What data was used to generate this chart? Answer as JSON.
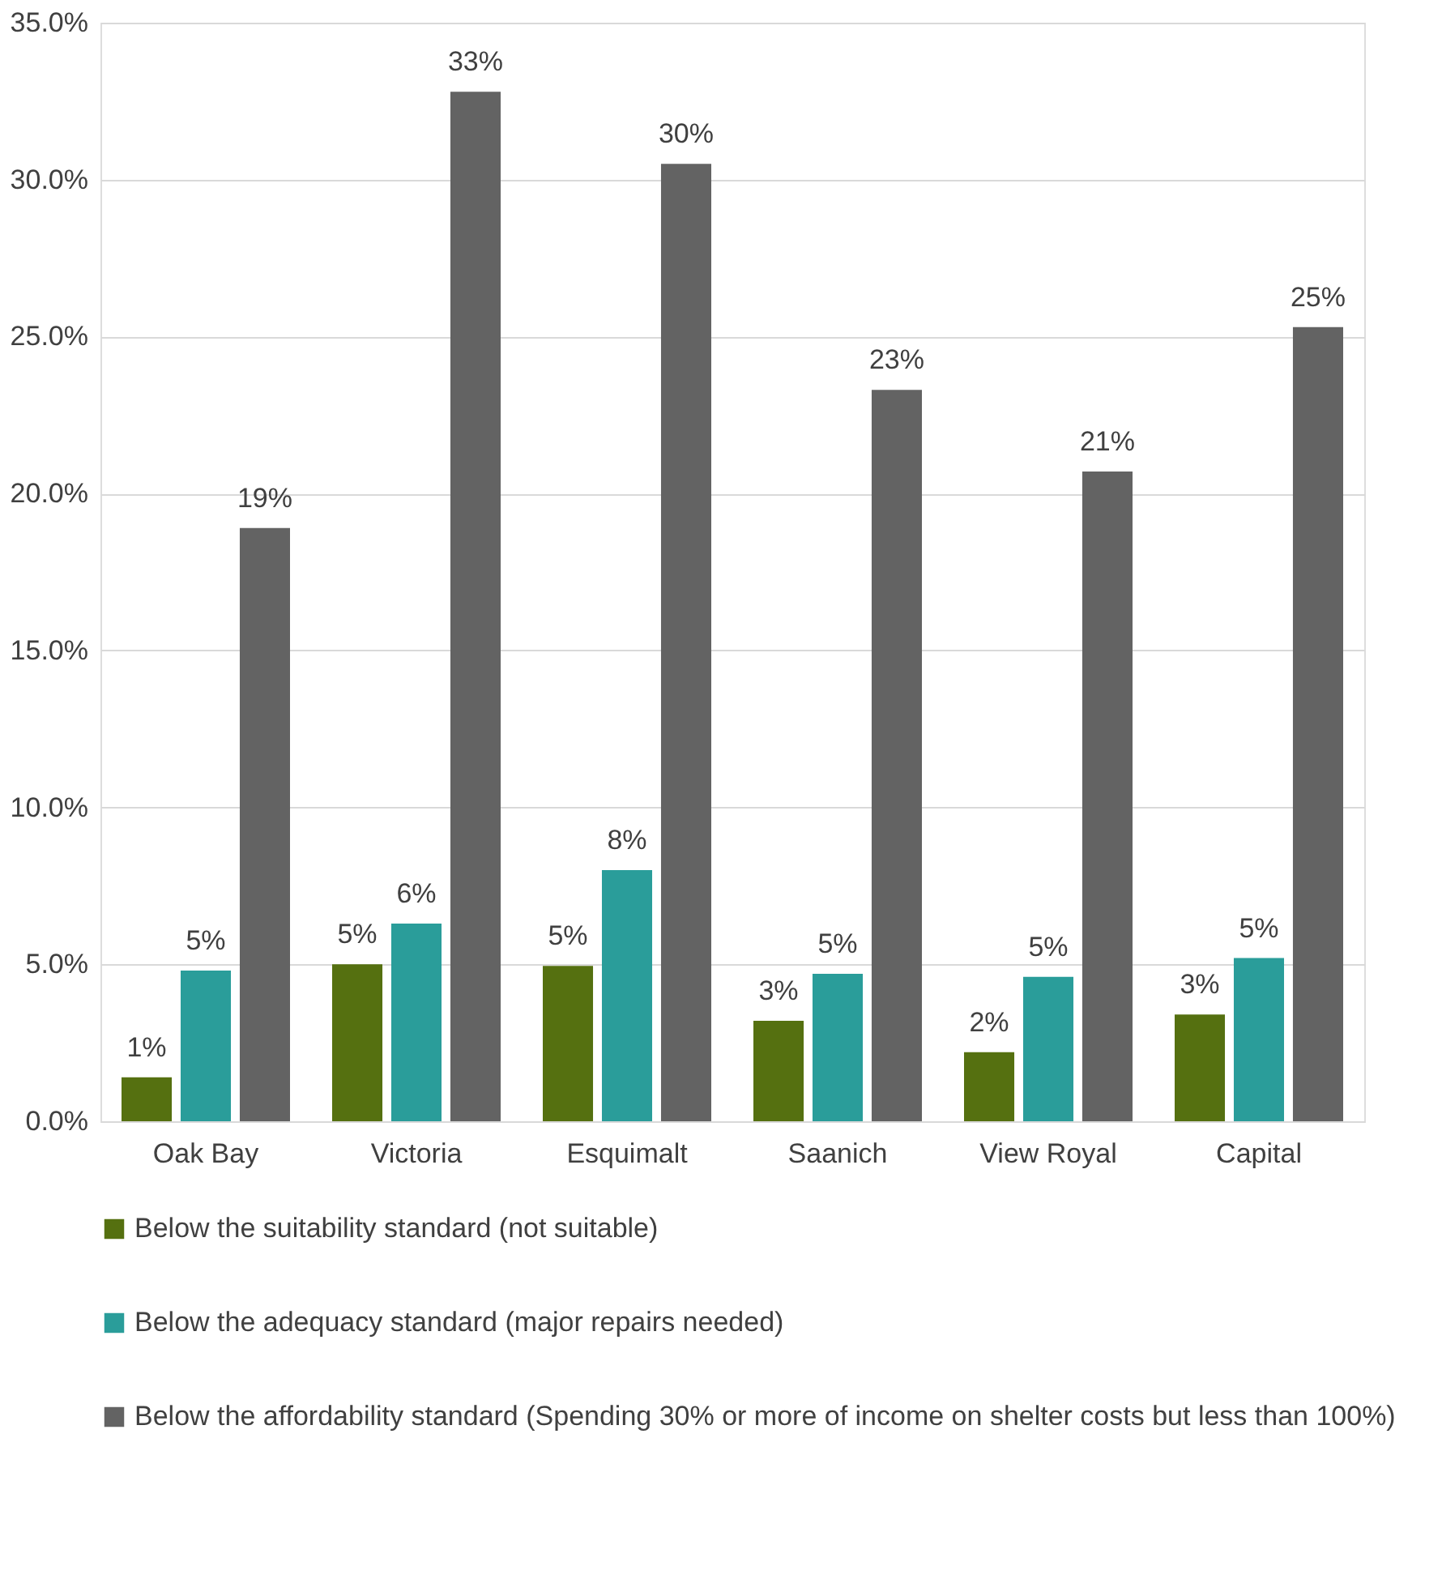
{
  "chart_data": {
    "type": "bar",
    "categories": [
      "Oak Bay",
      "Victoria",
      "Esquimalt",
      "Saanich",
      "View Royal",
      "Capital"
    ],
    "series": [
      {
        "name": "Below the suitability standard (not suitable)",
        "color": "#557010",
        "values": [
          1.4,
          5.0,
          4.95,
          3.2,
          2.2,
          3.4
        ],
        "value_labels": [
          "1%",
          "5%",
          "5%",
          "3%",
          "2%",
          "3%"
        ]
      },
      {
        "name": "Below the adequacy standard (major repairs needed)",
        "color": "#2a9d9a",
        "values": [
          4.8,
          6.3,
          8.0,
          4.7,
          4.6,
          5.2
        ],
        "value_labels": [
          "5%",
          "6%",
          "8%",
          "5%",
          "5%",
          "5%"
        ]
      },
      {
        "name": "Below the affordability standard (Spending 30% or more of income on shelter costs but less than 100%)",
        "color": "#636363",
        "values": [
          18.9,
          32.8,
          30.5,
          23.3,
          20.7,
          25.3
        ],
        "value_labels": [
          "19%",
          "33%",
          "30%",
          "23%",
          "21%",
          "25%"
        ]
      }
    ],
    "ylim": [
      0,
      35
    ],
    "yticks": [
      {
        "value": 0,
        "label": "0.0%"
      },
      {
        "value": 5,
        "label": "5.0%"
      },
      {
        "value": 10,
        "label": "10.0%"
      },
      {
        "value": 15,
        "label": "15.0%"
      },
      {
        "value": 20,
        "label": "20.0%"
      },
      {
        "value": 25,
        "label": "25.0%"
      },
      {
        "value": 30,
        "label": "30.0%"
      },
      {
        "value": 35,
        "label": "35.0%"
      }
    ],
    "grid": "y",
    "legend": "bottom"
  }
}
